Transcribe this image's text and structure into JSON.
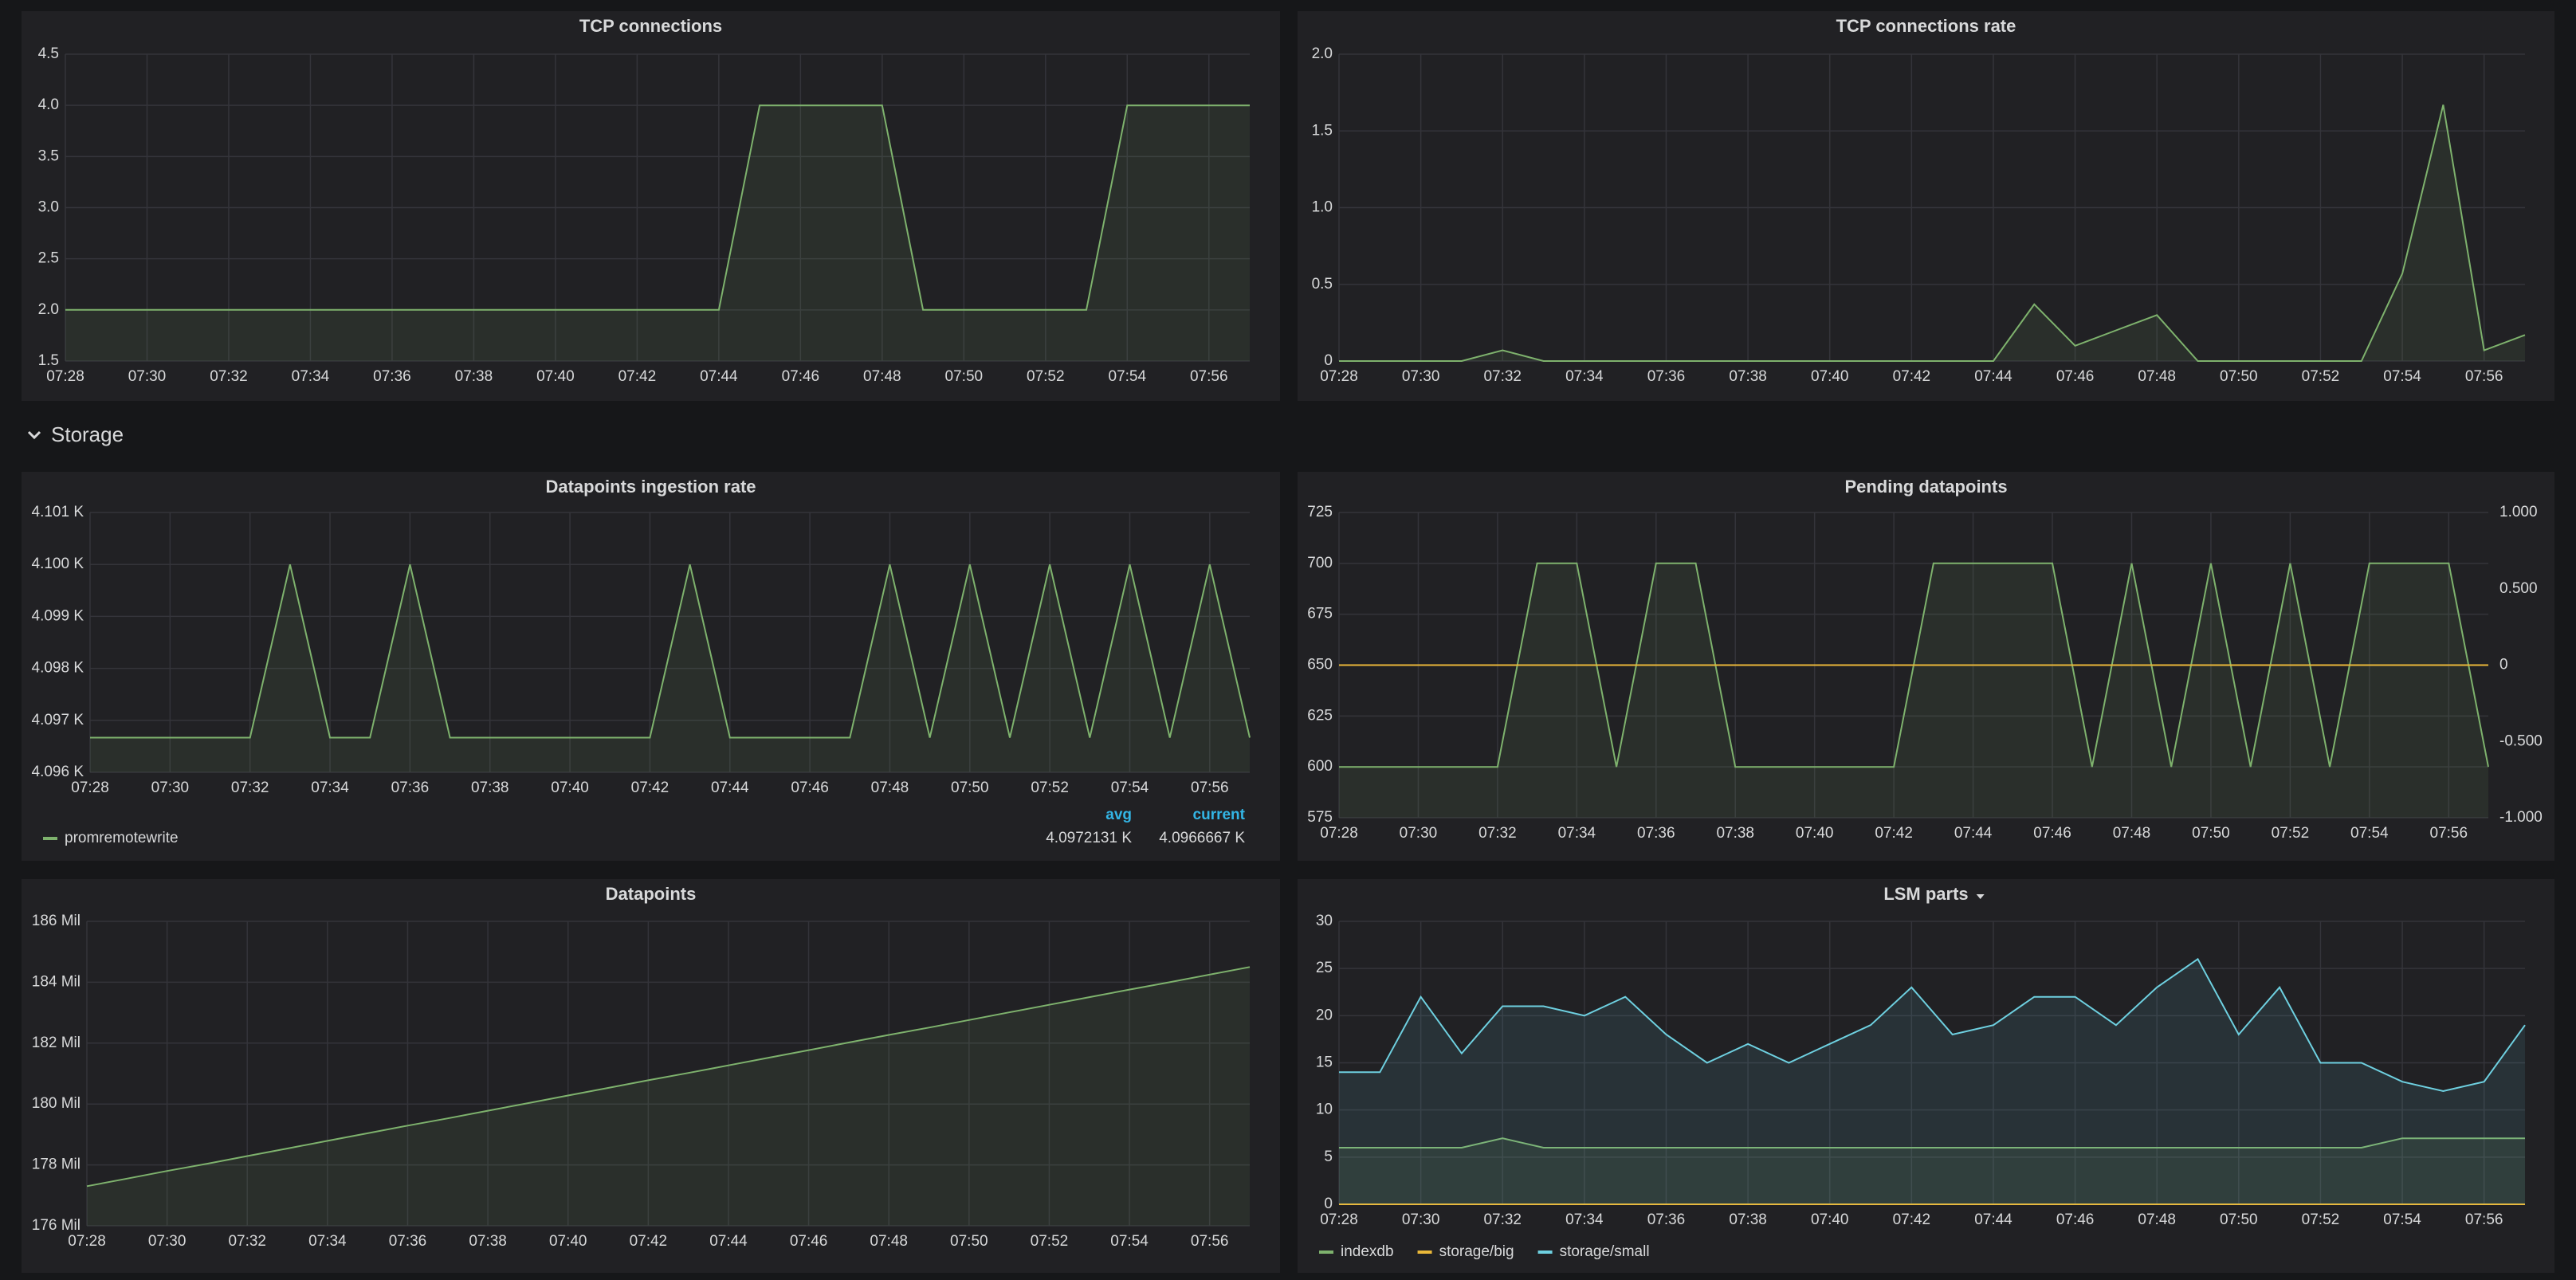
{
  "section": {
    "title": "Storage"
  },
  "chart_data": [
    {
      "type": "line",
      "title": "TCP connections",
      "categories": [
        "07:28",
        null,
        "07:30",
        null,
        "07:32",
        null,
        "07:34",
        null,
        "07:36",
        null,
        "07:38",
        null,
        "07:40",
        null,
        "07:42",
        null,
        "07:44",
        null,
        "07:46",
        null,
        "07:48",
        null,
        "07:50",
        null,
        "07:52",
        null,
        "07:54",
        null,
        "07:56",
        null
      ],
      "series": [
        {
          "color": "#7eb26d",
          "values": [
            2,
            2,
            2,
            2,
            2,
            2,
            2,
            2,
            2,
            2,
            2,
            2,
            2,
            2,
            2,
            2,
            2,
            4,
            4,
            4,
            4,
            2,
            2,
            2,
            2,
            2,
            4,
            4,
            4,
            4
          ]
        }
      ],
      "ylim": [
        1.5,
        4.5
      ],
      "yticks": [
        1.5,
        {
          "value": 2,
          "label": "2.0"
        },
        2.5,
        {
          "value": 3,
          "label": "3.0"
        },
        3.5,
        {
          "value": 4,
          "label": "4.0"
        },
        4.5
      ],
      "grid": true
    },
    {
      "type": "line",
      "title": "TCP connections rate",
      "categories": [
        "07:28",
        null,
        "07:30",
        null,
        "07:32",
        null,
        "07:34",
        null,
        "07:36",
        null,
        "07:38",
        null,
        "07:40",
        null,
        "07:42",
        null,
        "07:44",
        null,
        "07:46",
        null,
        "07:48",
        null,
        "07:50",
        null,
        "07:52",
        null,
        "07:54",
        null,
        "07:56",
        null
      ],
      "series": [
        {
          "color": "#7eb26d",
          "values": [
            0,
            0,
            0,
            0,
            0.07,
            0,
            0,
            0,
            0,
            0,
            0,
            0,
            0,
            0,
            0,
            0,
            0,
            0.37,
            0.1,
            0.2,
            0.3,
            0,
            0,
            0,
            0,
            0,
            0.57,
            1.67,
            0.07,
            0.17
          ]
        }
      ],
      "ylim": [
        0,
        2
      ],
      "yticks": [
        0,
        0.5,
        {
          "value": 1,
          "label": "1.0"
        },
        1.5,
        {
          "value": 2,
          "label": "2.0"
        }
      ],
      "grid": true
    },
    {
      "type": "line",
      "title": "Datapoints ingestion rate",
      "categories": [
        "07:28",
        null,
        "07:30",
        null,
        "07:32",
        null,
        "07:34",
        null,
        "07:36",
        null,
        "07:38",
        null,
        "07:40",
        null,
        "07:42",
        null,
        "07:44",
        null,
        "07:46",
        null,
        "07:48",
        null,
        "07:50",
        null,
        "07:52",
        null,
        "07:54",
        null,
        "07:56",
        null
      ],
      "series": [
        {
          "name": "promremotewrite",
          "color": "#7eb26d",
          "values": [
            4096.6667,
            4096.6667,
            4096.6667,
            4096.6667,
            4096.6667,
            4100,
            4096.6667,
            4096.6667,
            4100,
            4096.6667,
            4096.6667,
            4096.6667,
            4096.6667,
            4096.6667,
            4096.6667,
            4100,
            4096.6667,
            4096.6667,
            4096.6667,
            4096.6667,
            4100,
            4096.6667,
            4100,
            4096.6667,
            4100,
            4096.6667,
            4100,
            4096.6667,
            4100,
            4096.6667
          ],
          "stats": [
            {
              "name": "avg",
              "value": 4097.2131,
              "label": "4.0972131 K"
            },
            {
              "name": "current",
              "value": 4096.6667,
              "label": "4.0966667 K"
            }
          ]
        }
      ],
      "ylim": [
        4096,
        4101
      ],
      "yticks": [
        {
          "value": 4096,
          "label": "4.096 K"
        },
        {
          "value": 4097,
          "label": "4.097 K"
        },
        {
          "value": 4098,
          "label": "4.098 K"
        },
        {
          "value": 4099,
          "label": "4.099 K"
        },
        {
          "value": 4100,
          "label": "4.100 K"
        },
        {
          "value": 4101,
          "label": "4.101 K"
        }
      ],
      "grid": true,
      "legend": "bottom"
    },
    {
      "type": "line",
      "title": "Pending datapoints",
      "categories": [
        "07:28",
        null,
        "07:30",
        null,
        "07:32",
        null,
        "07:34",
        null,
        "07:36",
        null,
        "07:38",
        null,
        "07:40",
        null,
        "07:42",
        null,
        "07:44",
        null,
        "07:46",
        null,
        "07:48",
        null,
        "07:50",
        null,
        "07:52",
        null,
        "07:54",
        null,
        "07:56",
        null
      ],
      "series": [
        {
          "color": "#7eb26d",
          "values": [
            600,
            600,
            600,
            600,
            600,
            700,
            700,
            600,
            700,
            700,
            600,
            600,
            600,
            600,
            600,
            700,
            700,
            700,
            700,
            600,
            700,
            600,
            700,
            600,
            700,
            600,
            700,
            700,
            700,
            600
          ]
        },
        {
          "color": "#eab839",
          "axis": "y2",
          "values": [
            0,
            0,
            0,
            0,
            0,
            0,
            0,
            0,
            0,
            0,
            0,
            0,
            0,
            0,
            0,
            0,
            0,
            0,
            0,
            0,
            0,
            0,
            0,
            0,
            0,
            0,
            0,
            0,
            0,
            0
          ]
        }
      ],
      "ylim": [
        575,
        725
      ],
      "yticks": [
        575,
        600,
        625,
        650,
        675,
        700,
        725
      ],
      "y2lim": [
        -1,
        1
      ],
      "y2ticks": [
        {
          "value": -1,
          "label": "-1.000"
        },
        {
          "value": -0.5,
          "label": "-0.500"
        },
        0,
        {
          "value": 0.5,
          "label": "0.500"
        },
        {
          "value": 1,
          "label": "1.000"
        }
      ],
      "grid": true
    },
    {
      "type": "line",
      "title": "Datapoints",
      "categories": [
        "07:28",
        null,
        "07:30",
        null,
        "07:32",
        null,
        "07:34",
        null,
        "07:36",
        null,
        "07:38",
        null,
        "07:40",
        null,
        "07:42",
        null,
        "07:44",
        null,
        "07:46",
        null,
        "07:48",
        null,
        "07:50",
        null,
        "07:52",
        null,
        "07:54",
        null,
        "07:56",
        null
      ],
      "series": [
        {
          "color": "#7eb26d",
          "values": [
            177300000,
            177550000,
            177800000,
            178040000,
            178290000,
            178540000,
            178790000,
            179040000,
            179290000,
            179530000,
            179780000,
            180030000,
            180280000,
            180530000,
            180780000,
            181020000,
            181270000,
            181520000,
            181770000,
            182020000,
            182270000,
            182510000,
            182760000,
            183010000,
            183260000,
            183510000,
            183760000,
            184000000,
            184250000,
            184500000
          ]
        }
      ],
      "ylim": [
        176000000,
        186000000
      ],
      "yticks": [
        {
          "value": 176000000,
          "label": "176 Mil"
        },
        {
          "value": 178000000,
          "label": "178 Mil"
        },
        {
          "value": 180000000,
          "label": "180 Mil"
        },
        {
          "value": 182000000,
          "label": "182 Mil"
        },
        {
          "value": 184000000,
          "label": "184 Mil"
        },
        {
          "value": 186000000,
          "label": "186 Mil"
        }
      ],
      "grid": true
    },
    {
      "type": "line",
      "title": "LSM parts",
      "categories": [
        "07:28",
        null,
        "07:30",
        null,
        "07:32",
        null,
        "07:34",
        null,
        "07:36",
        null,
        "07:38",
        null,
        "07:40",
        null,
        "07:42",
        null,
        "07:44",
        null,
        "07:46",
        null,
        "07:48",
        null,
        "07:50",
        null,
        "07:52",
        null,
        "07:54",
        null,
        "07:56",
        null
      ],
      "series": [
        {
          "name": "indexdb",
          "color": "#7eb26d",
          "values": [
            6,
            6,
            6,
            6,
            7,
            6,
            6,
            6,
            6,
            6,
            6,
            6,
            6,
            6,
            6,
            6,
            6,
            6,
            6,
            6,
            6,
            6,
            6,
            6,
            6,
            6,
            7,
            7,
            7,
            7
          ]
        },
        {
          "name": "storage/big",
          "color": "#eab839",
          "values": [
            0,
            0,
            0,
            0,
            0,
            0,
            0,
            0,
            0,
            0,
            0,
            0,
            0,
            0,
            0,
            0,
            0,
            0,
            0,
            0,
            0,
            0,
            0,
            0,
            0,
            0,
            0,
            0,
            0,
            0
          ]
        },
        {
          "name": "storage/small",
          "color": "#6ed0e0",
          "values": [
            14,
            14,
            22,
            16,
            21,
            21,
            20,
            22,
            18,
            15,
            17,
            15,
            17,
            19,
            23,
            18,
            19,
            22,
            22,
            19,
            23,
            26,
            18,
            23,
            15,
            15,
            13,
            12,
            13,
            19
          ]
        }
      ],
      "ylim": [
        0,
        30
      ],
      "yticks": [
        0,
        5,
        10,
        15,
        20,
        25,
        30
      ],
      "grid": true,
      "legend": "bottom"
    }
  ]
}
